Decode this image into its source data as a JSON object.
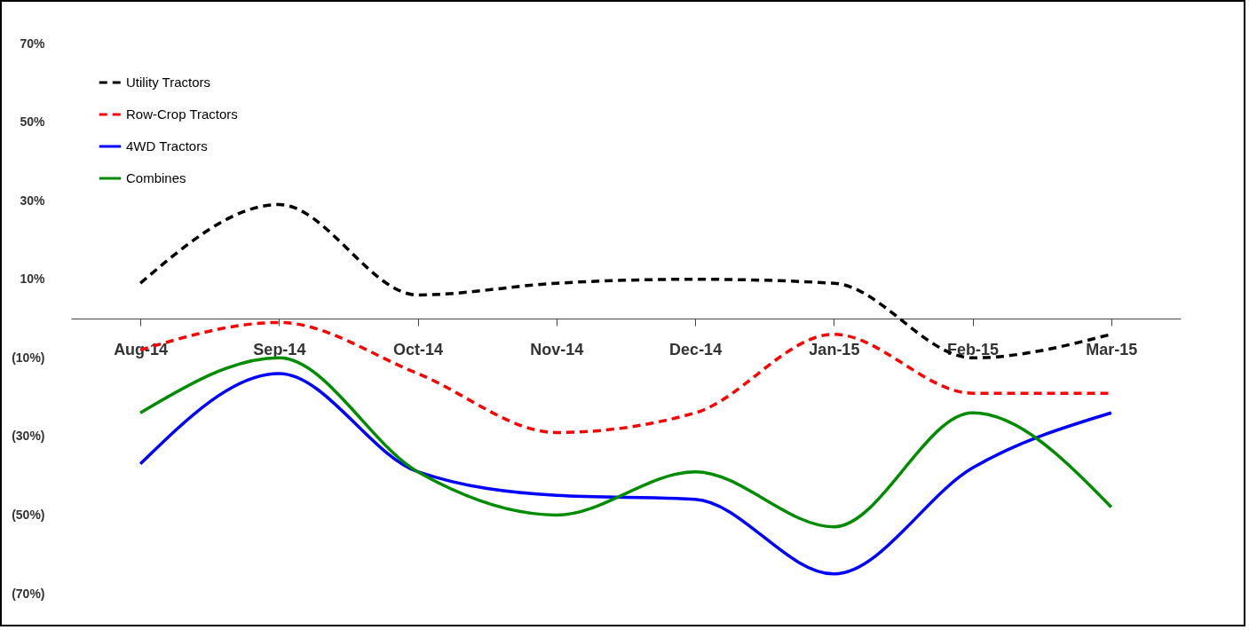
{
  "chart_data": {
    "type": "line",
    "categories": [
      "Aug-14",
      "Sep-14",
      "Oct-14",
      "Nov-14",
      "Dec-14",
      "Jan-15",
      "Feb-15",
      "Mar-15"
    ],
    "series": [
      {
        "name": "Utility Tractors",
        "color": "#000000",
        "line_style": "dashed",
        "values": [
          9,
          29,
          6,
          9,
          10,
          9,
          -10,
          -4
        ]
      },
      {
        "name": "Row-Crop Tractors",
        "color": "#ff0000",
        "line_style": "dashed",
        "values": [
          -8,
          -1,
          -14,
          -29,
          -24,
          -4,
          -19,
          -19
        ]
      },
      {
        "name": "4WD Tractors",
        "color": "#0000ff",
        "line_style": "solid",
        "values": [
          -37,
          -14,
          -39,
          -45,
          -46,
          -65,
          -38,
          -24
        ]
      },
      {
        "name": "Combines",
        "color": "#008c00",
        "line_style": "solid",
        "values": [
          -24,
          -10,
          -39,
          -50,
          -39,
          -53,
          -24,
          -48
        ]
      }
    ],
    "ylim": [
      -70,
      70
    ],
    "yticks": [
      {
        "value": 70,
        "label": "70%"
      },
      {
        "value": 50,
        "label": "50%"
      },
      {
        "value": 30,
        "label": "30%"
      },
      {
        "value": 10,
        "label": "10%"
      },
      {
        "value": -10,
        "label": "(10%)"
      },
      {
        "value": -30,
        "label": "(30%)"
      },
      {
        "value": -50,
        "label": "(50%)"
      },
      {
        "value": -70,
        "label": "(70%)"
      }
    ],
    "grid": false,
    "legend": "top left",
    "marker": "none"
  }
}
